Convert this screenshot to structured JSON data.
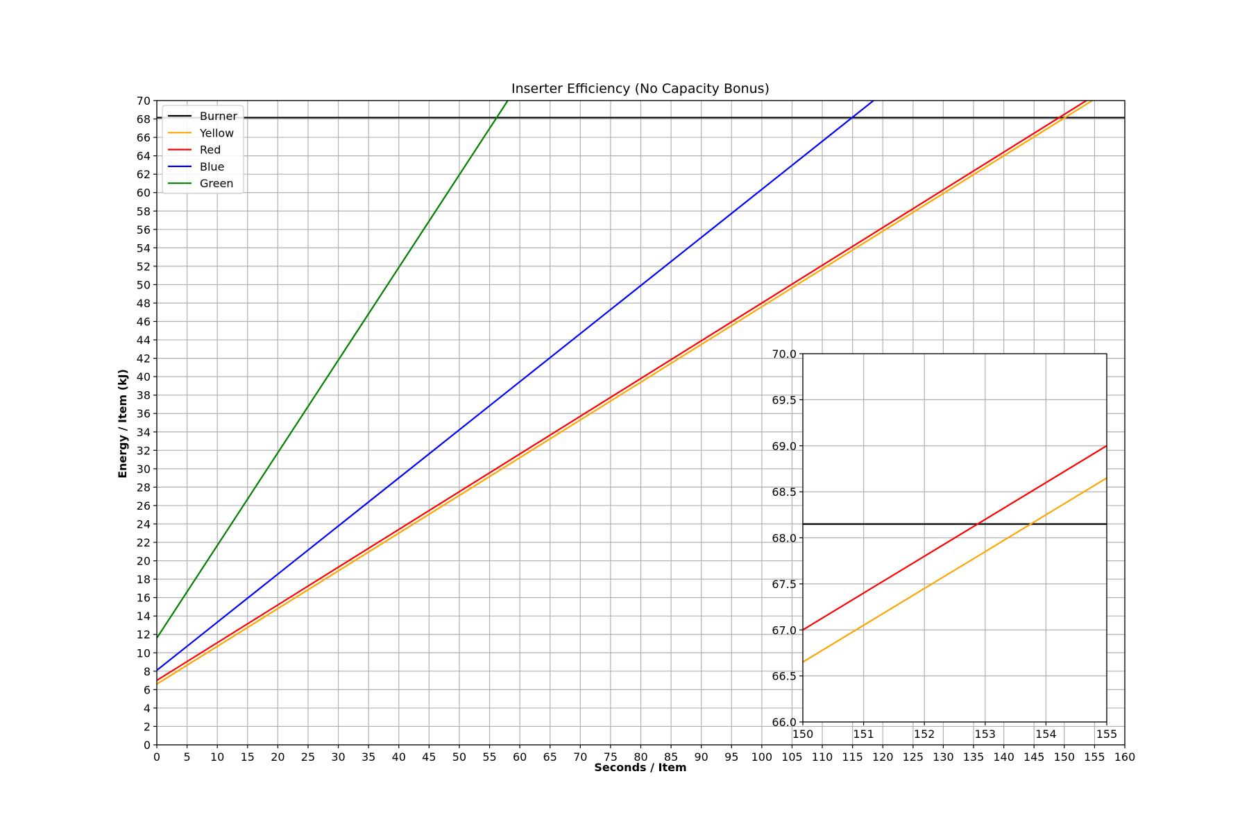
{
  "chart_data": [
    {
      "type": "line",
      "title": "Inserter Efficiency (No Capacity Bonus)",
      "xlabel": "Seconds / Item",
      "ylabel": "Energy / Item (kJ)",
      "xlim": [
        0,
        160
      ],
      "ylim": [
        0,
        70
      ],
      "xticks": [
        0,
        5,
        10,
        15,
        20,
        25,
        30,
        35,
        40,
        45,
        50,
        55,
        60,
        65,
        70,
        75,
        80,
        85,
        90,
        95,
        100,
        105,
        110,
        115,
        120,
        125,
        130,
        135,
        140,
        145,
        150,
        155,
        160
      ],
      "yticks": [
        0,
        2,
        4,
        6,
        8,
        10,
        12,
        14,
        16,
        18,
        20,
        22,
        24,
        26,
        28,
        30,
        32,
        34,
        36,
        38,
        40,
        42,
        44,
        46,
        48,
        50,
        52,
        54,
        56,
        58,
        60,
        62,
        64,
        66,
        68,
        70
      ],
      "grid": true,
      "legend_position": "upper-left",
      "series": [
        {
          "name": "Burner",
          "color": "#000000",
          "x": [
            0,
            160
          ],
          "y": [
            68.15,
            68.15
          ]
        },
        {
          "name": "Yellow",
          "color": "#ffa500",
          "x": [
            0,
            160
          ],
          "y": [
            6.6,
            72.2
          ]
        },
        {
          "name": "Red",
          "color": "#ff0000",
          "x": [
            0,
            160
          ],
          "y": [
            7.0,
            72.6
          ]
        },
        {
          "name": "Blue",
          "color": "#0000ff",
          "x": [
            0,
            160
          ],
          "y": [
            8.1,
            91.7
          ]
        },
        {
          "name": "Green",
          "color": "#008000",
          "x": [
            0,
            60
          ],
          "y": [
            11.6,
            72.0
          ]
        }
      ]
    },
    {
      "type": "line",
      "title": "",
      "xlabel": "",
      "ylabel": "",
      "xlim": [
        150,
        155
      ],
      "ylim": [
        66.0,
        70.0
      ],
      "xticks": [
        "150",
        "151",
        "152",
        "153",
        "154",
        "155"
      ],
      "yticks": [
        "66.0",
        "66.5",
        "67.0",
        "67.5",
        "68.0",
        "68.5",
        "69.0",
        "69.5",
        "70.0"
      ],
      "grid": true,
      "legend_position": "none",
      "series": [
        {
          "name": "Burner",
          "color": "#000000",
          "x": [
            150,
            155
          ],
          "y": [
            68.15,
            68.15
          ]
        },
        {
          "name": "Yellow",
          "color": "#ffa500",
          "x": [
            150,
            155
          ],
          "y": [
            66.65,
            68.65
          ]
        },
        {
          "name": "Red",
          "color": "#ff0000",
          "x": [
            150,
            155
          ],
          "y": [
            67.0,
            69.0
          ]
        }
      ]
    }
  ]
}
